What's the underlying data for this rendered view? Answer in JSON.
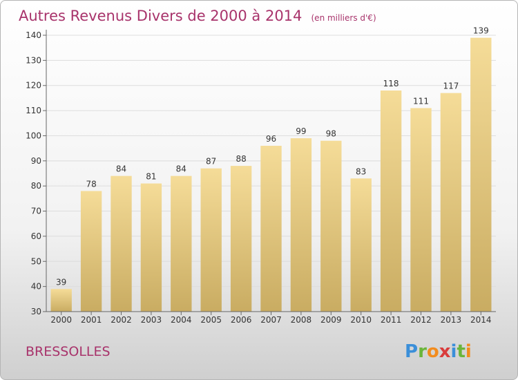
{
  "chart_data": {
    "type": "bar",
    "title": "Autres Revenus Divers de 2000 à 2014",
    "subtitle": "(en milliers d'€)",
    "categories": [
      "2000",
      "2001",
      "2002",
      "2003",
      "2004",
      "2005",
      "2006",
      "2007",
      "2008",
      "2009",
      "2010",
      "2011",
      "2012",
      "2013",
      "2014"
    ],
    "values": [
      39,
      78,
      84,
      81,
      84,
      87,
      88,
      96,
      99,
      98,
      83,
      118,
      111,
      117,
      139
    ],
    "ylim": [
      30,
      140
    ],
    "yticks": [
      30,
      40,
      50,
      60,
      70,
      80,
      90,
      100,
      110,
      120,
      130,
      140
    ],
    "grid": "horizontal",
    "bar_color": "#e6c87f"
  },
  "footer": {
    "location": "BRESSOLLES",
    "logo_letters": [
      "P",
      "r",
      "o",
      "x",
      "i",
      "t",
      "i"
    ],
    "logo_colors": [
      "#3b8fd9",
      "#6ab53b",
      "#f28c1e",
      "#d93b3b",
      "#3b8fd9",
      "#6ab53b",
      "#f28c1e"
    ]
  }
}
